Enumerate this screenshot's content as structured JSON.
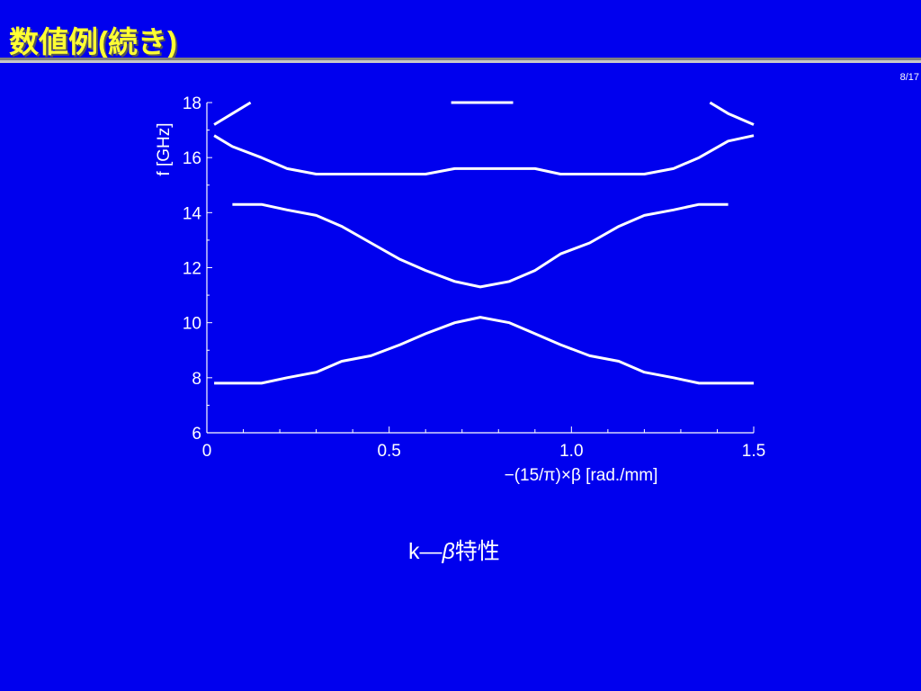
{
  "slide": {
    "title": "数値例(続き)",
    "page_number": "8/17",
    "caption_prefix": "k—",
    "caption_beta": "β",
    "caption_suffix": "特性"
  },
  "colors": {
    "background": "#0000ee",
    "title": "#ffff33",
    "line": "#ffffff"
  },
  "chart_data": {
    "type": "line",
    "xlabel": "−(15/π)×β  [rad./mm]",
    "ylabel": "f [GHz]",
    "xlim": [
      0,
      1.5
    ],
    "ylim": [
      6,
      18
    ],
    "x_ticks": [
      0,
      0.5,
      1.0,
      1.5
    ],
    "x_tick_labels": [
      "0",
      "0.5",
      "1.0",
      "1.5"
    ],
    "y_ticks": [
      6,
      8,
      10,
      12,
      14,
      16,
      18
    ],
    "y_tick_labels": [
      "6",
      "8",
      "10",
      "12",
      "14",
      "16",
      "18"
    ],
    "grid": false,
    "series": [
      {
        "x": [
          0.02,
          0.15,
          0.22,
          0.3,
          0.37,
          0.45,
          0.53,
          0.6,
          0.68,
          0.75,
          0.83,
          0.9,
          0.97,
          1.05,
          1.13,
          1.2,
          1.28,
          1.35,
          1.5
        ],
        "y": [
          7.8,
          7.8,
          8.0,
          8.2,
          8.6,
          8.8,
          9.2,
          9.6,
          10.0,
          10.2,
          10.0,
          9.6,
          9.2,
          8.8,
          8.6,
          8.2,
          8.0,
          7.8,
          7.8
        ]
      },
      {
        "x": [
          0.07,
          0.15,
          0.22,
          0.3,
          0.37,
          0.45,
          0.53,
          0.6,
          0.68,
          0.75,
          0.83,
          0.9,
          0.97,
          1.05,
          1.13,
          1.2,
          1.28,
          1.35,
          1.43
        ],
        "y": [
          14.3,
          14.3,
          14.1,
          13.9,
          13.5,
          12.9,
          12.3,
          11.9,
          11.5,
          11.3,
          11.5,
          11.9,
          12.5,
          12.9,
          13.5,
          13.9,
          14.1,
          14.3,
          14.3
        ]
      },
      {
        "x": [
          0.02,
          0.07,
          0.15,
          0.22,
          0.3,
          0.37,
          0.45,
          0.53,
          0.6,
          0.68,
          0.75,
          0.83,
          0.9,
          0.97,
          1.05,
          1.13,
          1.2,
          1.28,
          1.35,
          1.43,
          1.5
        ],
        "y": [
          16.8,
          16.4,
          16.0,
          15.6,
          15.4,
          15.4,
          15.4,
          15.4,
          15.4,
          15.6,
          15.6,
          15.6,
          15.6,
          15.4,
          15.4,
          15.4,
          15.4,
          15.6,
          16.0,
          16.6,
          16.8
        ]
      },
      {
        "x": [
          0.02,
          0.07,
          0.12
        ],
        "y": [
          17.2,
          17.6,
          18.0
        ]
      },
      {
        "x": [
          0.67,
          0.84
        ],
        "y": [
          18.0,
          18.0
        ]
      },
      {
        "x": [
          1.38,
          1.43,
          1.5
        ],
        "y": [
          18.0,
          17.6,
          17.2
        ]
      }
    ]
  }
}
